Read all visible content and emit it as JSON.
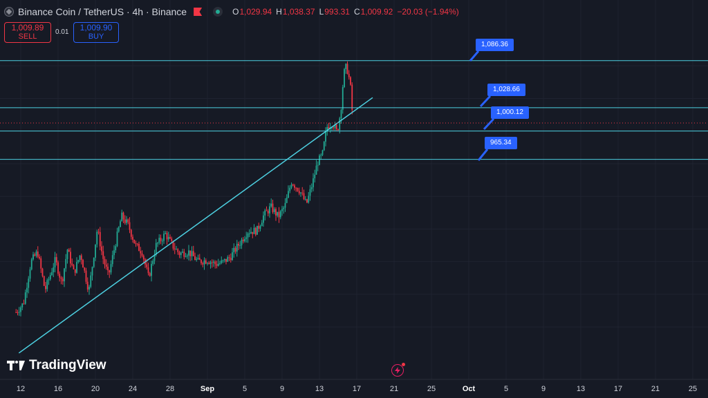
{
  "header": {
    "symbol": "Binance Coin / TetherUS · 4h · Binance",
    "ohlc": {
      "o": "1,029.94",
      "h": "1,038.37",
      "l": "993.31",
      "c": "1,009.92",
      "change": "−20.03 (−1.94%)"
    }
  },
  "trade": {
    "sell_price": "1,009.89",
    "sell_label": "SELL",
    "spread": "0.01",
    "buy_price": "1,009.90",
    "buy_label": "BUY"
  },
  "logo_text": "TradingView",
  "colors": {
    "background": "#161a25",
    "up": "#22ab94",
    "down": "#f23645",
    "line": "#4dd0e1",
    "label": "#2962ff"
  },
  "chart_data": {
    "type": "candlestick",
    "x_ticks": [
      "12",
      "16",
      "20",
      "24",
      "28",
      "Sep",
      "5",
      "9",
      "13",
      "17",
      "21",
      "25",
      "Oct",
      "5",
      "9",
      "13",
      "17",
      "21",
      "25"
    ],
    "ylim": [
      720,
      1110
    ],
    "horizontal_levels": [
      {
        "label": "1,086.36",
        "value": 1086.36
      },
      {
        "label": "1,028.66",
        "value": 1028.66
      },
      {
        "label": "1,000.12",
        "value": 1000.12
      },
      {
        "label": "965.34",
        "value": 965.34
      }
    ],
    "trendline": {
      "from": {
        "day": 11.8,
        "price": 728
      },
      "to": {
        "day": 49.7,
        "price": 1041
      }
    },
    "last_price": 1009.92,
    "close_path": [
      {
        "day": 11.5,
        "price": 778
      },
      {
        "day": 12.3,
        "price": 789
      },
      {
        "day": 13.1,
        "price": 840
      },
      {
        "day": 13.8,
        "price": 852
      },
      {
        "day": 14.6,
        "price": 805
      },
      {
        "day": 15.7,
        "price": 842
      },
      {
        "day": 16.4,
        "price": 814
      },
      {
        "day": 17.0,
        "price": 855
      },
      {
        "day": 17.7,
        "price": 826
      },
      {
        "day": 18.4,
        "price": 850
      },
      {
        "day": 19.3,
        "price": 804
      },
      {
        "day": 20.2,
        "price": 880
      },
      {
        "day": 20.8,
        "price": 845
      },
      {
        "day": 21.4,
        "price": 822
      },
      {
        "day": 22.1,
        "price": 860
      },
      {
        "day": 22.8,
        "price": 896
      },
      {
        "day": 23.5,
        "price": 885
      },
      {
        "day": 24.3,
        "price": 860
      },
      {
        "day": 25.0,
        "price": 852
      },
      {
        "day": 25.7,
        "price": 820
      },
      {
        "day": 26.5,
        "price": 860
      },
      {
        "day": 27.5,
        "price": 874
      },
      {
        "day": 28.3,
        "price": 859
      },
      {
        "day": 29.0,
        "price": 850
      },
      {
        "day": 30.0,
        "price": 852
      },
      {
        "day": 31.0,
        "price": 840
      },
      {
        "day": 32.0,
        "price": 842
      },
      {
        "day": 32.9,
        "price": 837
      },
      {
        "day": 33.6,
        "price": 839
      },
      {
        "day": 34.4,
        "price": 845
      },
      {
        "day": 35.6,
        "price": 865
      },
      {
        "day": 36.3,
        "price": 877
      },
      {
        "day": 37.3,
        "price": 878
      },
      {
        "day": 38.0,
        "price": 896
      },
      {
        "day": 38.8,
        "price": 907
      },
      {
        "day": 39.6,
        "price": 895
      },
      {
        "day": 40.3,
        "price": 908
      },
      {
        "day": 41.0,
        "price": 938
      },
      {
        "day": 41.9,
        "price": 927
      },
      {
        "day": 42.6,
        "price": 910
      },
      {
        "day": 43.3,
        "price": 938
      },
      {
        "day": 43.8,
        "price": 962
      },
      {
        "day": 44.3,
        "price": 970
      },
      {
        "day": 44.8,
        "price": 1005
      },
      {
        "day": 45.4,
        "price": 1010
      },
      {
        "day": 45.9,
        "price": 998
      },
      {
        "day": 46.3,
        "price": 1026
      },
      {
        "day": 46.6,
        "price": 1070
      },
      {
        "day": 46.9,
        "price": 1080
      },
      {
        "day": 47.3,
        "price": 1058
      },
      {
        "day": 47.6,
        "price": 1010
      }
    ]
  }
}
